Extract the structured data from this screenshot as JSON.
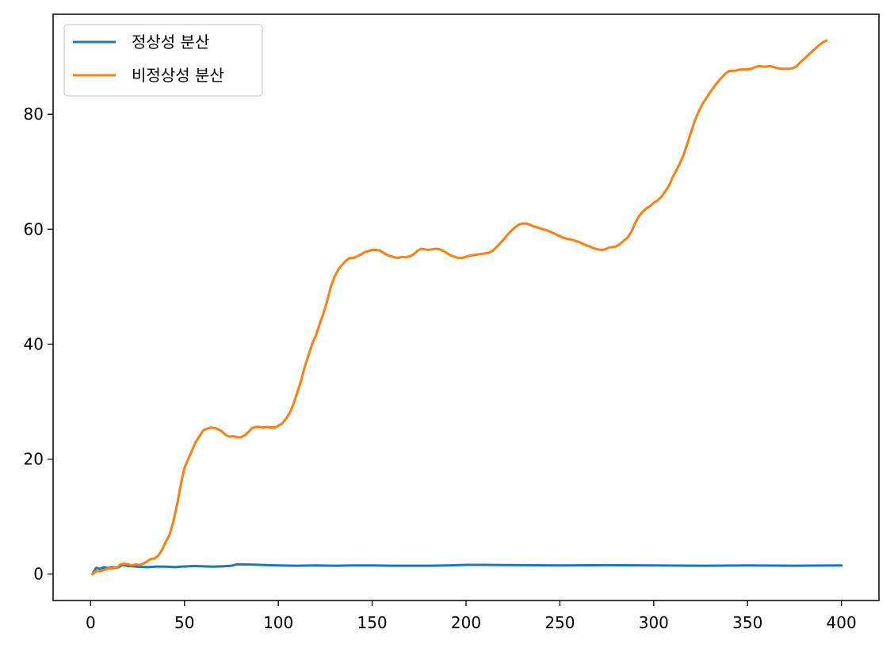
{
  "chart_data": {
    "type": "line",
    "title": "",
    "xlabel": "",
    "ylabel": "",
    "xlim": [
      -20,
      420
    ],
    "ylim": [
      -4.6,
      97.4
    ],
    "xticks": [
      0,
      50,
      100,
      150,
      200,
      250,
      300,
      350,
      400
    ],
    "yticks": [
      0,
      20,
      40,
      60,
      80
    ],
    "grid": false,
    "legend_position": "top-left",
    "series": [
      {
        "name": "정상성 분산",
        "color": "#1f77b4",
        "points": [
          [
            1,
            0.0
          ],
          [
            3,
            1.1
          ],
          [
            5,
            0.9
          ],
          [
            7,
            1.2
          ],
          [
            9,
            1.0
          ],
          [
            11,
            1.2
          ],
          [
            13,
            1.1
          ],
          [
            15,
            1.2
          ],
          [
            17,
            1.6
          ],
          [
            20,
            1.4
          ],
          [
            25,
            1.3
          ],
          [
            30,
            1.2
          ],
          [
            35,
            1.3
          ],
          [
            40,
            1.3
          ],
          [
            45,
            1.2
          ],
          [
            48,
            1.3
          ],
          [
            55,
            1.4
          ],
          [
            60,
            1.35
          ],
          [
            65,
            1.3
          ],
          [
            70,
            1.35
          ],
          [
            75,
            1.45
          ],
          [
            78,
            1.7
          ],
          [
            85,
            1.65
          ],
          [
            90,
            1.6
          ],
          [
            100,
            1.5
          ],
          [
            110,
            1.45
          ],
          [
            120,
            1.5
          ],
          [
            130,
            1.45
          ],
          [
            140,
            1.5
          ],
          [
            150,
            1.5
          ],
          [
            160,
            1.45
          ],
          [
            170,
            1.45
          ],
          [
            180,
            1.45
          ],
          [
            190,
            1.5
          ],
          [
            200,
            1.6
          ],
          [
            210,
            1.6
          ],
          [
            230,
            1.55
          ],
          [
            250,
            1.5
          ],
          [
            275,
            1.55
          ],
          [
            300,
            1.5
          ],
          [
            325,
            1.45
          ],
          [
            350,
            1.5
          ],
          [
            375,
            1.45
          ],
          [
            400,
            1.5
          ]
        ]
      },
      {
        "name": "비정상성 분산",
        "color": "#ff7f0e",
        "points": [
          [
            1,
            0.0
          ],
          [
            3,
            0.5
          ],
          [
            5,
            0.5
          ],
          [
            8,
            0.8
          ],
          [
            10,
            1.0
          ],
          [
            12,
            1.0
          ],
          [
            14,
            1.1
          ],
          [
            16,
            1.7
          ],
          [
            18,
            1.8
          ],
          [
            20,
            1.7
          ],
          [
            22,
            1.5
          ],
          [
            24,
            1.7
          ],
          [
            26,
            1.6
          ],
          [
            28,
            1.8
          ],
          [
            30,
            2.2
          ],
          [
            32,
            2.6
          ],
          [
            34,
            2.7
          ],
          [
            36,
            3.2
          ],
          [
            38,
            4.2
          ],
          [
            40,
            5.6
          ],
          [
            42,
            6.8
          ],
          [
            44,
            9.0
          ],
          [
            46,
            12.0
          ],
          [
            48,
            15.5
          ],
          [
            50,
            18.5
          ],
          [
            52,
            20.0
          ],
          [
            54,
            21.5
          ],
          [
            56,
            23.0
          ],
          [
            58,
            24.0
          ],
          [
            60,
            25.0
          ],
          [
            62,
            25.3
          ],
          [
            64,
            25.5
          ],
          [
            66,
            25.4
          ],
          [
            68,
            25.2
          ],
          [
            70,
            24.8
          ],
          [
            72,
            24.2
          ],
          [
            74,
            23.9
          ],
          [
            76,
            24.0
          ],
          [
            78,
            23.8
          ],
          [
            80,
            23.8
          ],
          [
            82,
            24.1
          ],
          [
            84,
            24.7
          ],
          [
            86,
            25.4
          ],
          [
            88,
            25.6
          ],
          [
            90,
            25.6
          ],
          [
            92,
            25.5
          ],
          [
            94,
            25.6
          ],
          [
            96,
            25.5
          ],
          [
            98,
            25.5
          ],
          [
            100,
            25.8
          ],
          [
            102,
            26.2
          ],
          [
            104,
            27.0
          ],
          [
            106,
            28.0
          ],
          [
            108,
            29.5
          ],
          [
            110,
            31.5
          ],
          [
            112,
            33.5
          ],
          [
            114,
            36.0
          ],
          [
            116,
            38.0
          ],
          [
            118,
            40.0
          ],
          [
            120,
            41.5
          ],
          [
            122,
            43.5
          ],
          [
            124,
            45.3
          ],
          [
            126,
            47.5
          ],
          [
            128,
            50.0
          ],
          [
            130,
            51.8
          ],
          [
            132,
            53.0
          ],
          [
            134,
            53.8
          ],
          [
            136,
            54.5
          ],
          [
            138,
            55.0
          ],
          [
            140,
            55.0
          ],
          [
            142,
            55.3
          ],
          [
            144,
            55.6
          ],
          [
            146,
            56.0
          ],
          [
            148,
            56.2
          ],
          [
            150,
            56.4
          ],
          [
            152,
            56.4
          ],
          [
            154,
            56.3
          ],
          [
            156,
            55.9
          ],
          [
            158,
            55.5
          ],
          [
            160,
            55.3
          ],
          [
            162,
            55.1
          ],
          [
            164,
            55.0
          ],
          [
            166,
            55.2
          ],
          [
            168,
            55.1
          ],
          [
            170,
            55.3
          ],
          [
            172,
            55.6
          ],
          [
            174,
            56.2
          ],
          [
            176,
            56.6
          ],
          [
            178,
            56.5
          ],
          [
            180,
            56.4
          ],
          [
            182,
            56.5
          ],
          [
            184,
            56.6
          ],
          [
            186,
            56.5
          ],
          [
            188,
            56.2
          ],
          [
            190,
            55.8
          ],
          [
            192,
            55.4
          ],
          [
            194,
            55.2
          ],
          [
            196,
            55.0
          ],
          [
            198,
            55.0
          ],
          [
            200,
            55.2
          ],
          [
            202,
            55.4
          ],
          [
            204,
            55.5
          ],
          [
            206,
            55.6
          ],
          [
            208,
            55.7
          ],
          [
            210,
            55.8
          ],
          [
            212,
            55.9
          ],
          [
            214,
            56.2
          ],
          [
            216,
            56.8
          ],
          [
            218,
            57.5
          ],
          [
            220,
            58.2
          ],
          [
            222,
            59.0
          ],
          [
            224,
            59.7
          ],
          [
            226,
            60.3
          ],
          [
            228,
            60.8
          ],
          [
            230,
            61.0
          ],
          [
            232,
            61.0
          ],
          [
            234,
            60.8
          ],
          [
            236,
            60.5
          ],
          [
            238,
            60.3
          ],
          [
            240,
            60.1
          ],
          [
            242,
            59.9
          ],
          [
            244,
            59.7
          ],
          [
            246,
            59.4
          ],
          [
            248,
            59.1
          ],
          [
            250,
            58.8
          ],
          [
            252,
            58.5
          ],
          [
            254,
            58.3
          ],
          [
            256,
            58.2
          ],
          [
            258,
            58.0
          ],
          [
            260,
            57.8
          ],
          [
            262,
            57.5
          ],
          [
            264,
            57.2
          ],
          [
            266,
            57.0
          ],
          [
            268,
            56.7
          ],
          [
            270,
            56.5
          ],
          [
            272,
            56.4
          ],
          [
            274,
            56.5
          ],
          [
            276,
            56.8
          ],
          [
            278,
            56.9
          ],
          [
            280,
            57.0
          ],
          [
            282,
            57.4
          ],
          [
            284,
            58.0
          ],
          [
            286,
            58.5
          ],
          [
            288,
            59.5
          ],
          [
            290,
            61.0
          ],
          [
            292,
            62.2
          ],
          [
            294,
            63.0
          ],
          [
            296,
            63.6
          ],
          [
            298,
            64.0
          ],
          [
            300,
            64.6
          ],
          [
            302,
            65.0
          ],
          [
            304,
            65.6
          ],
          [
            306,
            66.5
          ],
          [
            308,
            67.5
          ],
          [
            310,
            69.0
          ],
          [
            312,
            70.2
          ],
          [
            314,
            71.5
          ],
          [
            316,
            73.0
          ],
          [
            318,
            75.0
          ],
          [
            320,
            77.0
          ],
          [
            322,
            79.0
          ],
          [
            324,
            80.5
          ],
          [
            326,
            81.8
          ],
          [
            328,
            82.8
          ],
          [
            330,
            83.8
          ],
          [
            332,
            84.7
          ],
          [
            334,
            85.6
          ],
          [
            336,
            86.3
          ],
          [
            338,
            87.0
          ],
          [
            340,
            87.5
          ],
          [
            342,
            87.6
          ],
          [
            344,
            87.6
          ],
          [
            346,
            87.8
          ],
          [
            348,
            87.8
          ],
          [
            350,
            87.8
          ],
          [
            352,
            87.9
          ],
          [
            354,
            88.2
          ],
          [
            356,
            88.4
          ],
          [
            358,
            88.3
          ],
          [
            360,
            88.3
          ],
          [
            362,
            88.4
          ],
          [
            364,
            88.2
          ],
          [
            366,
            88.0
          ],
          [
            368,
            87.9
          ],
          [
            370,
            87.9
          ],
          [
            372,
            87.9
          ],
          [
            374,
            88.0
          ],
          [
            376,
            88.3
          ],
          [
            378,
            89.0
          ],
          [
            380,
            89.6
          ],
          [
            382,
            90.2
          ],
          [
            384,
            90.8
          ],
          [
            386,
            91.4
          ],
          [
            388,
            92.0
          ],
          [
            390,
            92.5
          ],
          [
            392,
            92.8
          ]
        ]
      }
    ]
  }
}
